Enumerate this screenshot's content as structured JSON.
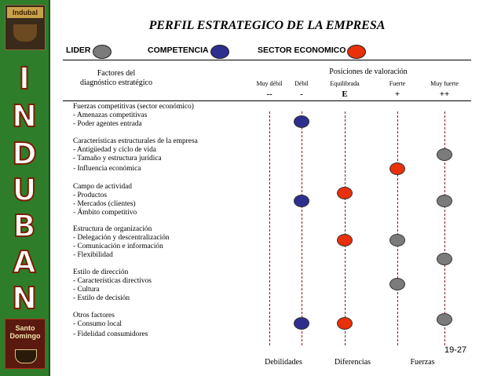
{
  "brand": {
    "logo_top_label": "Indubal",
    "logo_bottom_label": "Santo Domingo",
    "letters": [
      "I",
      "N",
      "D",
      "U",
      "B",
      "A",
      "N"
    ]
  },
  "title": "PERFIL ESTRATEGICO DE LA EMPRESA",
  "legend": [
    {
      "label": "LIDER",
      "color": "#7b7b7b"
    },
    {
      "label": "COMPETENCIA",
      "color": "#2e2e8f"
    },
    {
      "label": "SECTOR ECONOMICO",
      "color": "#e8300a"
    }
  ],
  "header": {
    "factors_line1": "Factores del",
    "factors_line2": "diagnóstico estratégico",
    "positions_title": "Posiciones de valoración"
  },
  "scale": [
    {
      "label": "Muy débil",
      "symbol": "--"
    },
    {
      "label": "Débil",
      "symbol": "-"
    },
    {
      "label": "Equilibrada",
      "symbol": "E"
    },
    {
      "label": "Fuerte",
      "symbol": "+"
    },
    {
      "label": "Muy fuerte",
      "symbol": "++"
    }
  ],
  "factors": [
    "Fuerzas competitivas  (sector económico)",
    "- Amenazas competitivas",
    "- Poder agentes entrada",
    "Características estructurales de la empresa",
    "- Antigüedad y ciclo de vida",
    "- Tamaño y estructura jurídica",
    "- Influencia económica",
    "Campo de actividad",
    "- Productos",
    "- Mercados (clientes)",
    "- Ámbito competitivo",
    "Estructura de organización",
    "- Delegación y descentralización",
    "- Comunicación e información",
    "- Flexibilidad",
    "Estilo de dirección",
    "- Características directivos",
    "- Cultura",
    "- Estilo de decisión",
    "Otros factores",
    "- Consumo local",
    "- Fidelidad consumidores"
  ],
  "ratings": [
    {
      "factor": "Fuerzas competitivas: Amenazas competitivas",
      "entity": "COMPETENCIA",
      "position": "-"
    },
    {
      "factor": "Antigüedad y ciclo de vida",
      "entity": "LIDER",
      "position": "++"
    },
    {
      "factor": "Influencia económica",
      "entity": "SECTOR ECONOMICO",
      "position": "+"
    },
    {
      "factor": "Campo de actividad: Productos",
      "entity": "SECTOR ECONOMICO",
      "position": "E"
    },
    {
      "factor": "Mercados (clientes)",
      "entity": "COMPETENCIA",
      "position": "-"
    },
    {
      "factor": "Mercados (clientes)",
      "entity": "LIDER",
      "position": "++"
    },
    {
      "factor": "Delegación y descentralización",
      "entity": "SECTOR ECONOMICO",
      "position": "E"
    },
    {
      "factor": "Delegación y descentralización",
      "entity": "LIDER",
      "position": "+"
    },
    {
      "factor": "Comunicación e información",
      "entity": "LIDER",
      "position": "++"
    },
    {
      "factor": "Características directivos",
      "entity": "LIDER",
      "position": "+"
    },
    {
      "factor": "Consumo local",
      "entity": "COMPETENCIA",
      "position": "-"
    },
    {
      "factor": "Consumo local",
      "entity": "SECTOR ECONOMICO",
      "position": "E"
    },
    {
      "factor": "Consumo local",
      "entity": "LIDER",
      "position": "++"
    }
  ],
  "footer": [
    "Debilidades",
    "Diferencias",
    "Fuerzas"
  ],
  "page_number": "19-27"
}
